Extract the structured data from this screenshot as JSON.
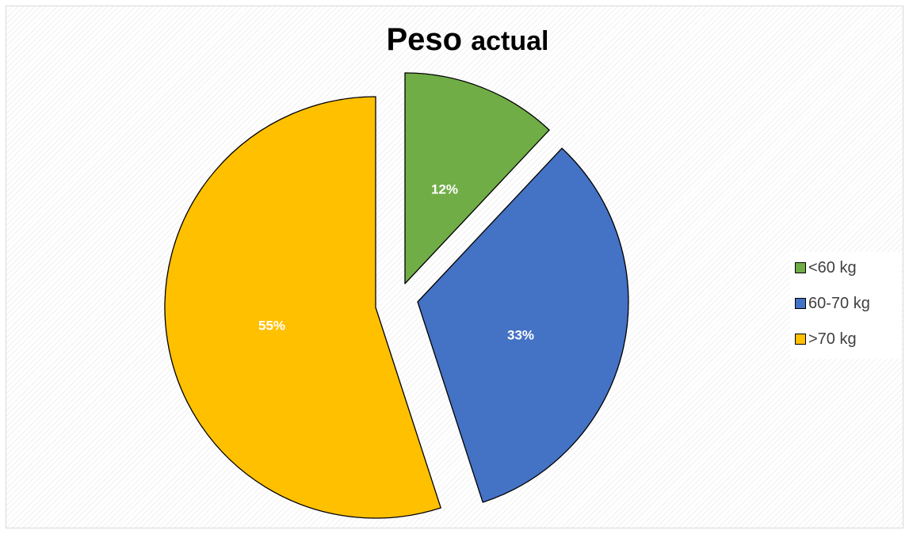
{
  "chart_data": {
    "type": "pie",
    "title_parts": [
      "Peso",
      "actual"
    ],
    "categories": [
      "<60 kg",
      "60-70 kg",
      ">70 kg"
    ],
    "values": [
      12,
      33,
      55
    ],
    "data_labels": [
      "12%",
      "33%",
      "55%"
    ],
    "colors": [
      "#70ad47",
      "#4472c4",
      "#ffc000"
    ],
    "exploded": true,
    "legend_position": "right"
  }
}
